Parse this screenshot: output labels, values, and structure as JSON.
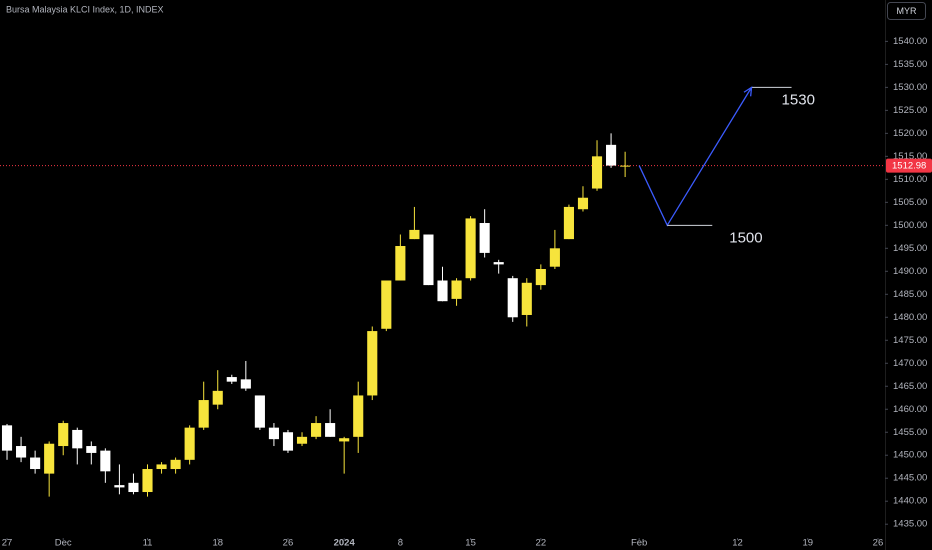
{
  "chart_data": {
    "type": "candlestick",
    "title": "Bursa Malaysia KLCI Index, 1D, INDEX",
    "currency": "MYR",
    "up_color": "#f7e43c",
    "down_color": "#ffffff",
    "x": [
      0,
      1,
      2,
      3,
      4,
      5,
      6,
      7,
      8,
      9,
      10,
      11,
      12,
      13,
      14,
      15,
      16,
      17,
      18,
      19,
      20,
      21,
      22,
      23,
      24,
      25,
      26,
      27,
      28,
      29,
      30,
      31,
      32,
      33,
      34,
      35,
      36,
      37,
      38,
      39,
      40,
      41,
      42,
      43,
      44
    ],
    "open": [
      1456.5,
      1452,
      1449.5,
      1446,
      1452,
      1455.5,
      1452,
      1451,
      1443.5,
      1444,
      1442,
      1447,
      1447,
      1449,
      1456,
      1461,
      1467,
      1466.5,
      1463,
      1456,
      1455,
      1452.5,
      1454,
      1457,
      1453,
      1454,
      1463,
      1477.5,
      1488,
      1497,
      1498,
      1488,
      1484,
      1488.5,
      1500.5,
      1492,
      1488.5,
      1480.5,
      1487,
      1491,
      1497,
      1503.5,
      1508,
      1517.5,
      1512.8
    ],
    "high": [
      1456.8,
      1454,
      1451,
      1453,
      1457.5,
      1456,
      1453,
      1451.5,
      1448,
      1446,
      1448,
      1448.5,
      1449.5,
      1456.5,
      1466,
      1468.5,
      1467.5,
      1470.5,
      1463,
      1457,
      1455.5,
      1455,
      1458.5,
      1460,
      1454,
      1466,
      1478,
      1488,
      1498,
      1504,
      1498,
      1491,
      1488.5,
      1502,
      1503.5,
      1492.5,
      1489,
      1488.5,
      1491.5,
      1499,
      1504.5,
      1508.5,
      1518.5,
      1520,
      1516
    ],
    "low": [
      1449,
      1448.5,
      1446,
      1441,
      1450,
      1448,
      1448,
      1444,
      1441.5,
      1441.5,
      1441,
      1446,
      1446,
      1448,
      1455.5,
      1460,
      1465.5,
      1464,
      1455.5,
      1452,
      1450.5,
      1452,
      1453.5,
      1454,
      1446,
      1450.5,
      1462,
      1477,
      1488,
      1497,
      1487,
      1483.5,
      1482.5,
      1488,
      1493,
      1489.5,
      1479,
      1478,
      1486,
      1490.5,
      1497,
      1503,
      1507.5,
      1512.5,
      1510.5
    ],
    "close": [
      1451,
      1449.5,
      1447,
      1452.5,
      1457,
      1451.5,
      1450.5,
      1446.5,
      1443,
      1442,
      1447,
      1448,
      1449,
      1456,
      1462,
      1464,
      1466,
      1464.5,
      1456,
      1453.5,
      1451,
      1454,
      1457,
      1454,
      1453.7,
      1463,
      1477,
      1488,
      1495.5,
      1499,
      1487,
      1483.5,
      1488,
      1501.5,
      1494,
      1491.5,
      1480,
      1487.5,
      1490.5,
      1495,
      1504,
      1506,
      1515,
      1513,
      1512.98
    ],
    "last_price": 1512.98,
    "last_price_color": "#f23645",
    "projection": {
      "color": "#3b5bfd",
      "x": [
        45,
        47,
        53
      ],
      "values": [
        1513,
        1500,
        1530
      ]
    },
    "annotations": [
      "1500",
      "1530"
    ],
    "xlim": [
      -0.5,
      62.5
    ],
    "ylim": [
      1432,
      1549
    ],
    "xticks": [
      {
        "value": 0,
        "label": "27"
      },
      {
        "value": 4,
        "label": "Dec"
      },
      {
        "value": 10,
        "label": "11"
      },
      {
        "value": 15,
        "label": "18"
      },
      {
        "value": 20,
        "label": "26"
      },
      {
        "value": 24,
        "label": "2024"
      },
      {
        "value": 28,
        "label": "8"
      },
      {
        "value": 33,
        "label": "15"
      },
      {
        "value": 38,
        "label": "22"
      },
      {
        "value": 45,
        "label": "Feb"
      },
      {
        "value": 52,
        "label": "12"
      },
      {
        "value": 57,
        "label": "19"
      },
      {
        "value": 62,
        "label": "26"
      }
    ],
    "yticks": [
      {
        "value": 1435,
        "label": "1435.00"
      },
      {
        "value": 1440,
        "label": "1440.00"
      },
      {
        "value": 1445,
        "label": "1445.00"
      },
      {
        "value": 1450,
        "label": "1450.00"
      },
      {
        "value": 1455,
        "label": "1455.00"
      },
      {
        "value": 1460,
        "label": "1460.00"
      },
      {
        "value": 1465,
        "label": "1465.00"
      },
      {
        "value": 1470,
        "label": "1470.00"
      },
      {
        "value": 1475,
        "label": "1475.00"
      },
      {
        "value": 1480,
        "label": "1480.00"
      },
      {
        "value": 1485,
        "label": "1485.00"
      },
      {
        "value": 1490,
        "label": "1490.00"
      },
      {
        "value": 1495,
        "label": "1495.00"
      },
      {
        "value": 1500,
        "label": "1500.00"
      },
      {
        "value": 1505,
        "label": "1505.00"
      },
      {
        "value": 1510,
        "label": "1510.00"
      },
      {
        "value": 1515,
        "label": "1515.00"
      },
      {
        "value": 1520,
        "label": "1520.00"
      },
      {
        "value": 1525,
        "label": "1525.00"
      },
      {
        "value": 1530,
        "label": "1530.00"
      },
      {
        "value": 1535,
        "label": "1535.00"
      },
      {
        "value": 1540,
        "label": "1540.00"
      }
    ]
  }
}
